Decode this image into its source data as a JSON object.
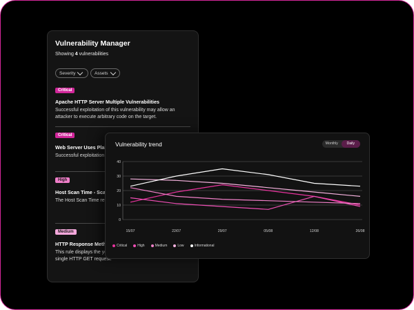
{
  "manager": {
    "title": "Vulnerability Manager",
    "showing_prefix": "Showing ",
    "showing_count": "4",
    "showing_suffix": " vulnerabilities",
    "filters": [
      {
        "label": "Severity"
      },
      {
        "label": "Assets"
      }
    ],
    "items": [
      {
        "severity": "Critical",
        "title": "Apache HTTP Server Multiple Vulnerabilities",
        "description": "Successful exploitation of this vulnerability may allow an attacker to execute arbitrary code on the target."
      },
      {
        "severity": "Critical",
        "title": "Web Server Uses Plain",
        "description": "Successful exploitation attacker to execute arbit"
      },
      {
        "severity": "High",
        "title": "Host Scan Time - Scan",
        "description": "The Host Scan Time re system takes to check vulnerabilities."
      },
      {
        "severity": "Medium",
        "title": "HTTP Response Meth",
        "description": "This rule displays the your computer's browser when it gets a single HTTP GET request."
      }
    ]
  },
  "trend": {
    "title": "Vulnerability trend",
    "toggle": {
      "options": [
        "Monthly",
        "Daily"
      ],
      "selected": "Daily"
    }
  },
  "colors": {
    "Critical": "#e8339e",
    "High": "#ef4fb5",
    "Medium": "#f080c8",
    "Low": "#f6b3df",
    "Informational": "#ffffff"
  },
  "chart_data": {
    "type": "line",
    "title": "Vulnerability trend",
    "x": [
      "15/07",
      "22/07",
      "29/07",
      "05/08",
      "12/08",
      "26/08"
    ],
    "ylim": [
      0,
      40
    ],
    "yticks": [
      0,
      10,
      20,
      30,
      40
    ],
    "grid": true,
    "legend_position": "bottom-left",
    "series": [
      {
        "name": "Critical",
        "values": [
          12,
          19,
          24,
          20,
          16,
          10
        ]
      },
      {
        "name": "High",
        "values": [
          15,
          11,
          9,
          7,
          16,
          9
        ]
      },
      {
        "name": "Medium",
        "values": [
          22,
          16,
          14,
          13,
          12,
          11
        ]
      },
      {
        "name": "Low",
        "values": [
          28,
          27,
          25,
          22,
          19,
          16
        ]
      },
      {
        "name": "Informational",
        "values": [
          23,
          30,
          35,
          31,
          25,
          23
        ]
      }
    ]
  }
}
